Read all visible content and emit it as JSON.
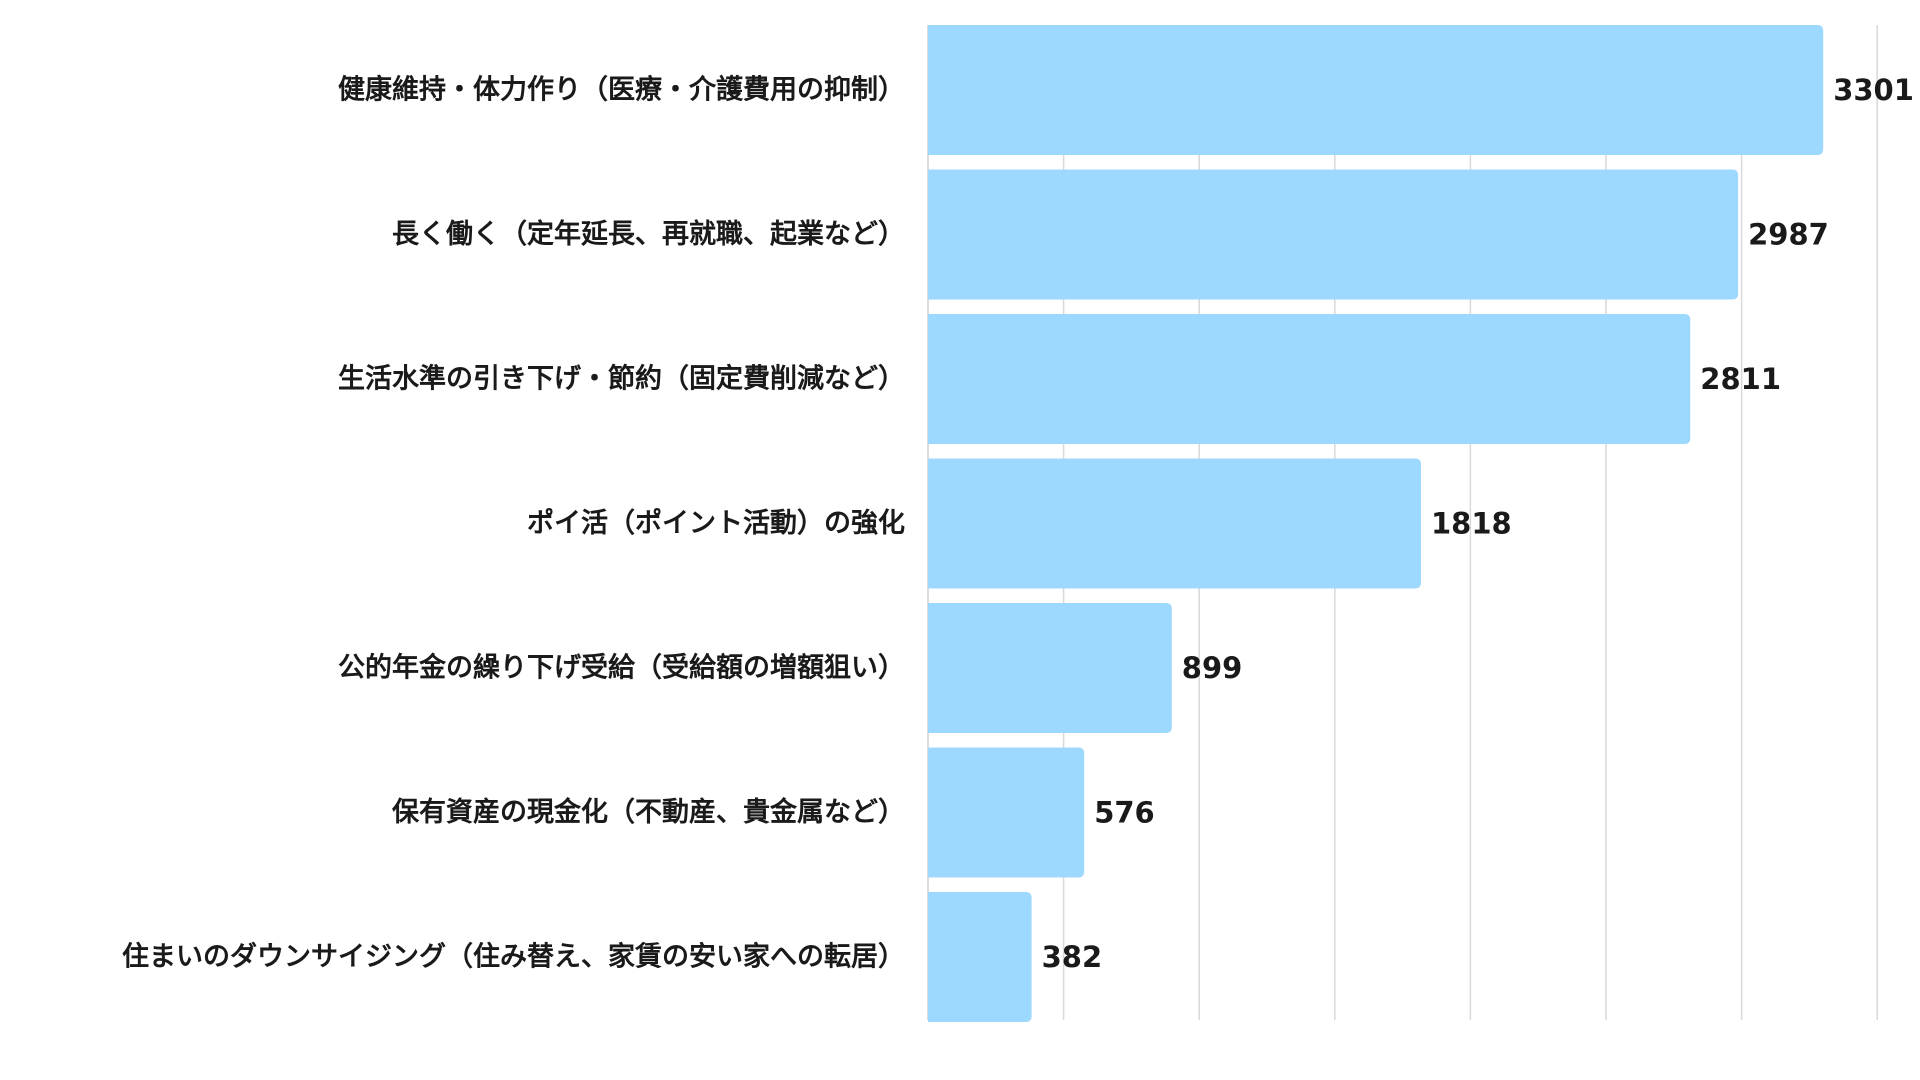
{
  "chart_data": {
    "type": "bar",
    "orientation": "horizontal",
    "categories": [
      "健康維持・体力作り（医療・介護費用の抑制）",
      "長く働く（定年延長、再就職、起業など）",
      "生活水準の引き下げ・節約（固定費削減など）",
      "ポイ活（ポイント活動）の強化",
      "公的年金の繰り下げ受給（受給額の増額狙い）",
      "保有資産の現金化（不動産、貴金属など）",
      "住まいのダウンサイジング（住み替え、家賃の安い家への転居）"
    ],
    "values": [
      3301,
      2987,
      2811,
      1818,
      899,
      576,
      382
    ],
    "value_labels": [
      "3301",
      "2987",
      "2811",
      "1818",
      "899",
      "576",
      "382"
    ],
    "xlim": [
      0,
      3500
    ],
    "grid_step": 500,
    "grid": true,
    "show_axis_ticks": false,
    "bar_color": "#9dd8fe",
    "title": "",
    "xlabel": "",
    "ylabel": ""
  }
}
